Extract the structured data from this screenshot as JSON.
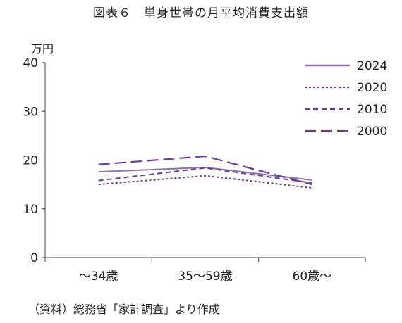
{
  "title": "図表６　単身世帯の月平均消費支出額",
  "source": "（資料）総務省「家計調査」より作成",
  "chart_data": {
    "type": "line",
    "title": "図表６　単身世帯の月平均消費支出額",
    "ylabel": "万円",
    "xlabel": "",
    "categories": [
      "～34歳",
      "35～59歳",
      "60歳～"
    ],
    "ylim": [
      0,
      40
    ],
    "yticks": [
      0,
      10,
      20,
      30,
      40
    ],
    "grid": false,
    "legend": "top-right",
    "series": [
      {
        "name": "2024",
        "values": [
          17.6,
          18.5,
          15.9
        ],
        "color": "#8e74a6",
        "dash": "solid"
      },
      {
        "name": "2020",
        "values": [
          15.0,
          16.8,
          14.3
        ],
        "color": "#6a3d9a",
        "dash": "dotted"
      },
      {
        "name": "2010",
        "values": [
          15.8,
          18.4,
          15.3
        ],
        "color": "#6a3d9a",
        "dash": "short-dash"
      },
      {
        "name": "2000",
        "values": [
          19.1,
          20.8,
          15.0
        ],
        "color": "#6a3d9a",
        "dash": "long-dash"
      }
    ]
  }
}
